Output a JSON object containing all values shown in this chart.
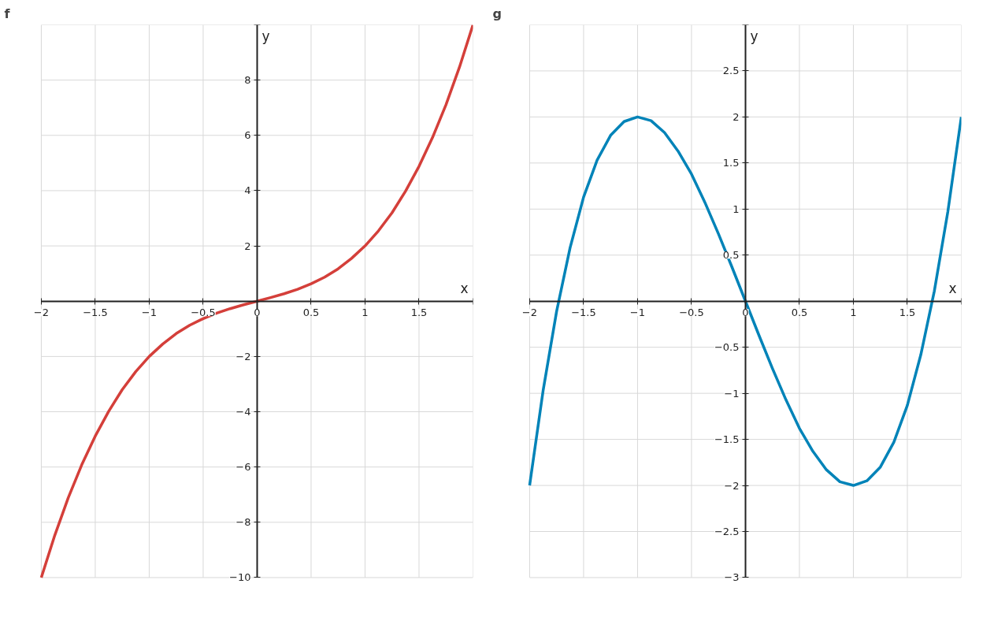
{
  "chart_data": [
    {
      "type": "line",
      "title": "f",
      "xlabel": "x",
      "ylabel": "y",
      "grid": true,
      "x": [
        -2,
        -1.875,
        -1.75,
        -1.625,
        -1.5,
        -1.375,
        -1.25,
        -1.125,
        -1,
        -0.875,
        -0.75,
        -0.625,
        -0.5,
        -0.375,
        -0.25,
        -0.125,
        0,
        0.125,
        0.25,
        0.375,
        0.5,
        0.625,
        0.75,
        0.875,
        1,
        1.125,
        1.25,
        1.375,
        1.5,
        1.625,
        1.75,
        1.875,
        2
      ],
      "series": [
        {
          "color": "#d43f3a",
          "values": [
            -10,
            -8.47,
            -7.11,
            -5.92,
            -4.88,
            -3.98,
            -3.2,
            -2.55,
            -2,
            -1.55,
            -1.17,
            -0.87,
            -0.63,
            -0.43,
            -0.27,
            -0.13,
            0,
            0.13,
            0.27,
            0.43,
            0.63,
            0.87,
            1.17,
            1.55,
            2,
            2.55,
            3.2,
            3.98,
            4.88,
            5.92,
            7.11,
            8.47,
            10
          ]
        }
      ],
      "xlim": [
        -2,
        2
      ],
      "ylim": [
        -10,
        10
      ],
      "xticks": [
        {
          "value": -2,
          "label": "−2"
        },
        {
          "value": -1.5,
          "label": "−1.5"
        },
        {
          "value": -1,
          "label": "−1"
        },
        {
          "value": -0.5,
          "label": "−0.5"
        },
        0,
        0.5,
        1,
        1.5,
        {
          "value": 2,
          "label": null
        }
      ],
      "yticks": [
        {
          "value": -10,
          "label": "−10"
        },
        {
          "value": -8,
          "label": "−8"
        },
        {
          "value": -6,
          "label": "−6"
        },
        {
          "value": -4,
          "label": "−4"
        },
        {
          "value": -2,
          "label": "−2"
        },
        {
          "value": 0,
          "label": null
        },
        2,
        4,
        6,
        8,
        {
          "value": 10,
          "label": null
        }
      ]
    },
    {
      "type": "line",
      "title": "g",
      "xlabel": "x",
      "ylabel": "y",
      "grid": true,
      "x": [
        -2,
        -1.875,
        -1.75,
        -1.625,
        -1.5,
        -1.375,
        -1.25,
        -1.125,
        -1,
        -0.875,
        -0.75,
        -0.625,
        -0.5,
        -0.375,
        -0.25,
        -0.125,
        0,
        0.125,
        0.25,
        0.375,
        0.5,
        0.625,
        0.75,
        0.875,
        1,
        1.125,
        1.25,
        1.375,
        1.5,
        1.625,
        1.75,
        1.875,
        2
      ],
      "series": [
        {
          "color": "#0083b8",
          "values": [
            -2,
            -0.97,
            -0.11,
            0.58,
            1.13,
            1.53,
            1.8,
            1.95,
            2,
            1.96,
            1.83,
            1.63,
            1.38,
            1.07,
            0.73,
            0.37,
            0,
            -0.37,
            -0.73,
            -1.07,
            -1.38,
            -1.63,
            -1.83,
            -1.96,
            -2,
            -1.95,
            -1.8,
            -1.53,
            -1.13,
            -0.58,
            0.11,
            0.97,
            2
          ]
        }
      ],
      "xlim": [
        -2,
        2
      ],
      "ylim": [
        -3,
        3
      ],
      "xticks": [
        {
          "value": -2,
          "label": "−2"
        },
        {
          "value": -1.5,
          "label": "−1.5"
        },
        {
          "value": -1,
          "label": "−1"
        },
        {
          "value": -0.5,
          "label": "−0.5"
        },
        0,
        0.5,
        1,
        1.5,
        {
          "value": 2,
          "label": null
        }
      ],
      "yticks": [
        {
          "value": -3,
          "label": "−3"
        },
        {
          "value": -2.5,
          "label": "−2.5"
        },
        {
          "value": -2,
          "label": "−2"
        },
        {
          "value": -1.5,
          "label": "−1.5"
        },
        {
          "value": -1,
          "label": "−1"
        },
        {
          "value": -0.5,
          "label": "−0.5"
        },
        {
          "value": 0,
          "label": null
        },
        0.5,
        1,
        1.5,
        2,
        2.5,
        {
          "value": 3,
          "label": null
        }
      ]
    }
  ]
}
